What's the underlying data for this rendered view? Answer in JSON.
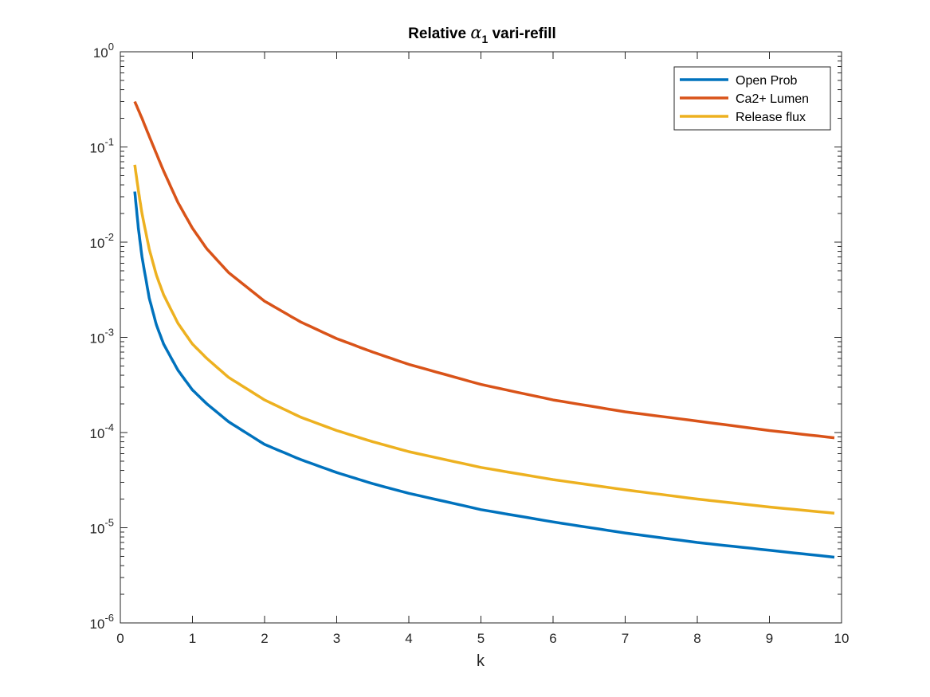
{
  "chart_data": {
    "type": "line",
    "title": {
      "prefix": "Relative ",
      "symbol": "α",
      "subscript": "1",
      "suffix": " vari-refill"
    },
    "xlabel": "k",
    "ylabel": "",
    "xlim": [
      0,
      10
    ],
    "ylim": [
      1e-06,
      1
    ],
    "yscale": "log",
    "grid": false,
    "legend_position": "top-right",
    "x_ticks": [
      "0",
      "1",
      "2",
      "3",
      "4",
      "5",
      "6",
      "7",
      "8",
      "9",
      "10"
    ],
    "y_ticks": [
      {
        "base": "10",
        "exp": "0"
      },
      {
        "base": "10",
        "exp": "-1"
      },
      {
        "base": "10",
        "exp": "-2"
      },
      {
        "base": "10",
        "exp": "-3"
      },
      {
        "base": "10",
        "exp": "-4"
      },
      {
        "base": "10",
        "exp": "-5"
      },
      {
        "base": "10",
        "exp": "-6"
      }
    ],
    "series": [
      {
        "name": "Open Prob",
        "color": "#0072BD",
        "x": [
          0.2,
          0.25,
          0.3,
          0.4,
          0.5,
          0.6,
          0.8,
          1.0,
          1.2,
          1.5,
          2.0,
          2.5,
          3.0,
          3.5,
          4.0,
          5.0,
          6.0,
          7.0,
          8.0,
          9.0,
          9.9
        ],
        "y": [
          0.034,
          0.014,
          0.007,
          0.0026,
          0.00135,
          0.00085,
          0.00045,
          0.00028,
          0.0002,
          0.00013,
          7.5e-05,
          5.2e-05,
          3.8e-05,
          2.9e-05,
          2.3e-05,
          1.55e-05,
          1.15e-05,
          8.8e-06,
          7e-06,
          5.8e-06,
          4.9e-06
        ]
      },
      {
        "name": "Ca2+ Lumen",
        "color": "#D95319",
        "x": [
          0.2,
          0.3,
          0.4,
          0.5,
          0.6,
          0.8,
          1.0,
          1.2,
          1.5,
          2.0,
          2.5,
          3.0,
          3.5,
          4.0,
          5.0,
          6.0,
          7.0,
          8.0,
          9.0,
          9.9
        ],
        "y": [
          0.3,
          0.2,
          0.13,
          0.085,
          0.056,
          0.026,
          0.014,
          0.0085,
          0.0048,
          0.0024,
          0.00145,
          0.00097,
          0.0007,
          0.00052,
          0.00032,
          0.00022,
          0.000165,
          0.000132,
          0.000105,
          8.8e-05
        ]
      },
      {
        "name": "Release flux",
        "color": "#EDB120",
        "x": [
          0.2,
          0.25,
          0.3,
          0.4,
          0.5,
          0.6,
          0.8,
          1.0,
          1.2,
          1.5,
          2.0,
          2.5,
          3.0,
          3.5,
          4.0,
          5.0,
          6.0,
          7.0,
          8.0,
          9.0,
          9.9
        ],
        "y": [
          0.065,
          0.035,
          0.02,
          0.0085,
          0.0045,
          0.0028,
          0.0014,
          0.00085,
          0.0006,
          0.00038,
          0.00022,
          0.000145,
          0.000105,
          8e-05,
          6.3e-05,
          4.3e-05,
          3.2e-05,
          2.5e-05,
          2e-05,
          1.65e-05,
          1.42e-05
        ]
      }
    ]
  }
}
